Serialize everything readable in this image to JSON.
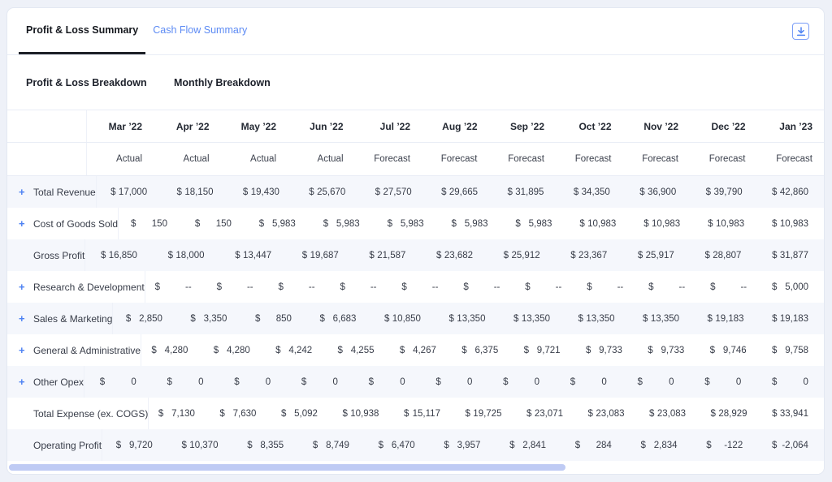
{
  "tabs": [
    {
      "label": "Profit & Loss Summary",
      "active": true
    },
    {
      "label": "Cash Flow Summary",
      "active": false
    }
  ],
  "toolbar": {
    "icons": {
      "download": "download-tray-arrow"
    }
  },
  "section": {
    "left_title": "Profit & Loss Breakdown",
    "right_title": "Monthly Breakdown"
  },
  "table": {
    "currency": "$",
    "expand_glyph": "+",
    "columns": [
      {
        "month": "Mar ’22",
        "type": "Actual"
      },
      {
        "month": "Apr ’22",
        "type": "Actual"
      },
      {
        "month": "May ’22",
        "type": "Actual"
      },
      {
        "month": "Jun ’22",
        "type": "Actual"
      },
      {
        "month": "Jul ’22",
        "type": "Forecast"
      },
      {
        "month": "Aug ’22",
        "type": "Forecast"
      },
      {
        "month": "Sep ’22",
        "type": "Forecast"
      },
      {
        "month": "Oct ’22",
        "type": "Forecast"
      },
      {
        "month": "Nov ’22",
        "type": "Forecast"
      },
      {
        "month": "Dec ’22",
        "type": "Forecast"
      },
      {
        "month": "Jan ’23",
        "type": "Forecast"
      }
    ],
    "rows": [
      {
        "label": "Total Revenue",
        "expandable": true,
        "values": [
          "17,000",
          "18,150",
          "19,430",
          "25,670",
          "27,570",
          "29,665",
          "31,895",
          "34,350",
          "36,900",
          "39,790",
          "42,860"
        ]
      },
      {
        "label": "Cost of Goods Sold",
        "expandable": true,
        "values": [
          "150",
          "150",
          "5,983",
          "5,983",
          "5,983",
          "5,983",
          "5,983",
          "10,983",
          "10,983",
          "10,983",
          "10,983"
        ]
      },
      {
        "label": "Gross Profit",
        "expandable": false,
        "values": [
          "16,850",
          "18,000",
          "13,447",
          "19,687",
          "21,587",
          "23,682",
          "25,912",
          "23,367",
          "25,917",
          "28,807",
          "31,877"
        ]
      },
      {
        "label": "Research & Development",
        "expandable": true,
        "values": [
          "--",
          "--",
          "--",
          "--",
          "--",
          "--",
          "--",
          "--",
          "--",
          "--",
          "5,000"
        ]
      },
      {
        "label": "Sales & Marketing",
        "expandable": true,
        "values": [
          "2,850",
          "3,350",
          "850",
          "6,683",
          "10,850",
          "13,350",
          "13,350",
          "13,350",
          "13,350",
          "19,183",
          "19,183"
        ]
      },
      {
        "label": "General & Administrative",
        "expandable": true,
        "values": [
          "4,280",
          "4,280",
          "4,242",
          "4,255",
          "4,267",
          "6,375",
          "9,721",
          "9,733",
          "9,733",
          "9,746",
          "9,758"
        ]
      },
      {
        "label": "Other Opex",
        "expandable": true,
        "values": [
          "0",
          "0",
          "0",
          "0",
          "0",
          "0",
          "0",
          "0",
          "0",
          "0",
          "0"
        ]
      },
      {
        "label": "Total Expense (ex. COGS)",
        "expandable": false,
        "values": [
          "7,130",
          "7,630",
          "5,092",
          "10,938",
          "15,117",
          "19,725",
          "23,071",
          "23,083",
          "23,083",
          "28,929",
          "33,941"
        ]
      },
      {
        "label": "Operating Profit",
        "expandable": false,
        "values": [
          "9,720",
          "10,370",
          "8,355",
          "8,749",
          "6,470",
          "3,957",
          "2,841",
          "284",
          "2,834",
          "-122",
          "-2,064"
        ]
      }
    ]
  },
  "colors": {
    "accent_blue": "#4d82f3",
    "inactive_tab_blue": "#5d8bf4",
    "active_tab_underline": "#1d2027",
    "row_tint": "#f5f7fc",
    "scrollbar_thumb": "#bfcbf4",
    "page_background": "#eef1f8"
  }
}
